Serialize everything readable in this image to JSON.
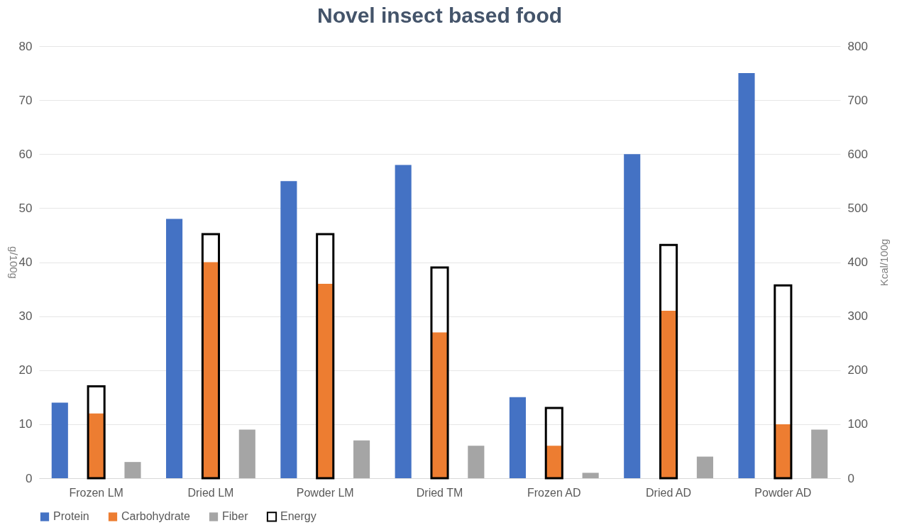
{
  "chart_data": {
    "type": "bar",
    "title": "Novel insect based food",
    "categories": [
      "Frozen LM",
      "Dried LM",
      "Powder LM",
      "Dried TM",
      "Frozen AD",
      "Dried AD",
      "Powder AD"
    ],
    "series": [
      {
        "name": "Protein",
        "color": "#4472c4",
        "values": [
          14,
          48,
          55,
          58,
          15,
          60,
          75
        ]
      },
      {
        "name": "Carbohydrate",
        "color": "#ed7d31",
        "values": [
          12,
          40,
          36,
          27,
          6,
          31,
          10
        ]
      },
      {
        "name": "Fiber",
        "color": "#a5a5a5",
        "values": [
          3,
          9,
          7,
          6,
          1,
          4,
          9
        ]
      },
      {
        "name": "Energy",
        "color": "#000000",
        "axis": "y2",
        "values": [
          170,
          452,
          452,
          390,
          130,
          432,
          357
        ]
      }
    ],
    "ylabel": "g/100g",
    "y2label": "Kcal/100g",
    "ylim": [
      0,
      80
    ],
    "yticks": [
      0,
      10,
      20,
      30,
      40,
      50,
      60,
      70,
      80
    ],
    "y2lim": [
      0,
      800
    ],
    "y2ticks": [
      0,
      100,
      200,
      300,
      400,
      500,
      600,
      700,
      800
    ],
    "grid": "y",
    "legend": "bottom"
  }
}
